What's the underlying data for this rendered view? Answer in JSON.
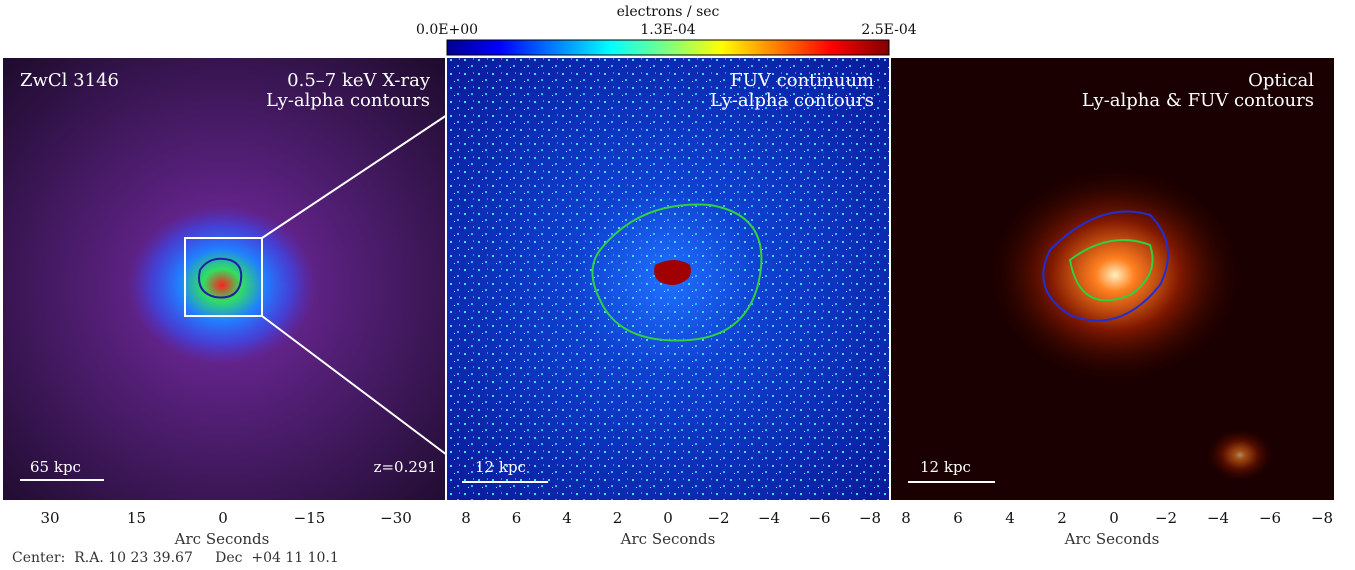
{
  "colorbar": {
    "label": "electrons / sec",
    "ticks": [
      "0.0E+00",
      "1.3E-04",
      "2.5E-04"
    ]
  },
  "panels": [
    {
      "corner_label": "ZwCl 3146",
      "caption": [
        "0.5–7 keV X-ray",
        "Ly-alpha contours"
      ],
      "scale_bar": "65 kpc",
      "redshift": "z=0.291",
      "x_ticks": [
        "30",
        "15",
        "0",
        "−15",
        "−30"
      ],
      "x_label": "Arc Seconds"
    },
    {
      "caption": [
        "FUV continuum",
        "Ly-alpha contours"
      ],
      "scale_bar": "12 kpc",
      "x_ticks": [
        "8",
        "6",
        "4",
        "2",
        "0",
        "−2",
        "−4",
        "−6",
        "−8"
      ],
      "x_label": "Arc Seconds"
    },
    {
      "caption": [
        "Optical",
        "Ly-alpha & FUV contours"
      ],
      "scale_bar": "12 kpc",
      "x_ticks": [
        "8",
        "6",
        "4",
        "2",
        "0",
        "−2",
        "−4",
        "−6",
        "−8"
      ],
      "x_label": "Arc Seconds"
    }
  ],
  "center": "Center:  R.A. 10 23 39.67     Dec  +04 11 10.1"
}
